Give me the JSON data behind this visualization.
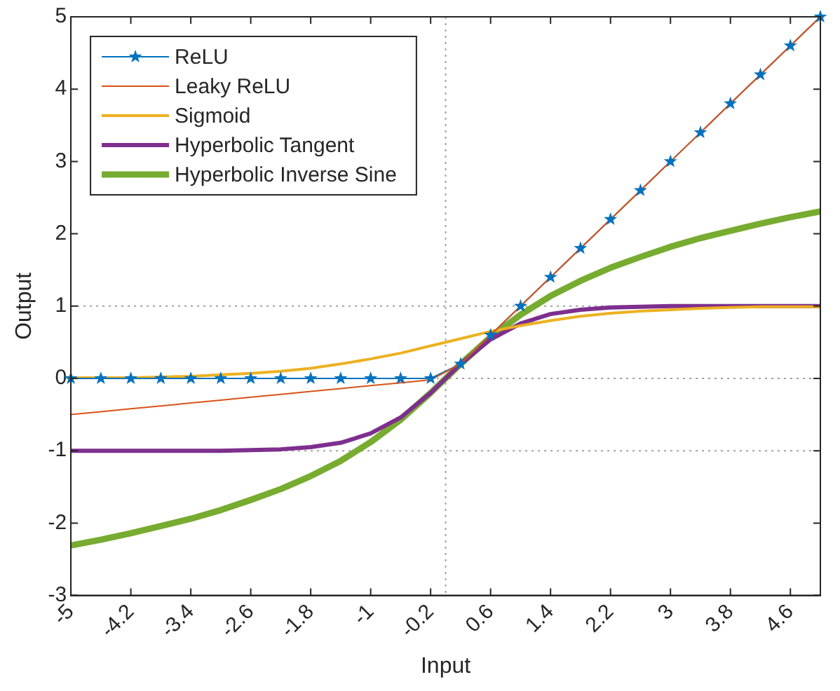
{
  "chart_data": {
    "type": "line",
    "xlabel": "Input",
    "ylabel": "Output",
    "x": [
      -5,
      -4.6,
      -4.2,
      -3.8,
      -3.4,
      -3,
      -2.6,
      -2.2,
      -1.8,
      -1.4,
      -1,
      -0.6,
      -0.2,
      0.2,
      0.6,
      1,
      1.4,
      1.8,
      2.2,
      2.6,
      3,
      3.4,
      3.8,
      4.2,
      4.6,
      5
    ],
    "xlim": [
      -5,
      5
    ],
    "xticks": [
      -5,
      -4.2,
      -3.4,
      -2.6,
      -1.8,
      -1,
      -0.2,
      0.6,
      1.4,
      2.2,
      3,
      3.8,
      4.6
    ],
    "ylim": [
      -3,
      5
    ],
    "yticks": [
      -3,
      -2,
      -1,
      0,
      1,
      2,
      3,
      4,
      5
    ],
    "grid": false,
    "legend": "top left",
    "line_style": "solid",
    "ref_lines": [
      {
        "axis": "y",
        "value": 1,
        "color": "#a0a0a0",
        "line_style": "dotted"
      },
      {
        "axis": "y",
        "value": 0,
        "color": "#a0a0a0",
        "line_style": "dotted"
      },
      {
        "axis": "y",
        "value": -1,
        "color": "#a0a0a0",
        "line_style": "dotted"
      },
      {
        "axis": "x",
        "value": 0,
        "color": "#a0a0a0",
        "line_style": "dotted"
      }
    ],
    "series": [
      {
        "name": "ReLU",
        "color": "#0072bd",
        "marker": "star",
        "values": [
          0,
          0,
          0,
          0,
          0,
          0,
          0,
          0,
          0,
          0,
          0,
          0,
          0,
          0.2,
          0.6,
          1,
          1.4,
          1.8,
          2.2,
          2.6,
          3,
          3.4,
          3.8,
          4.2,
          4.6,
          5
        ]
      },
      {
        "name": "Leaky ReLU",
        "color": "#d95319",
        "marker": "none",
        "values": [
          -0.5,
          -0.46,
          -0.42,
          -0.38,
          -0.34,
          -0.3,
          -0.26,
          -0.22,
          -0.18,
          -0.14,
          -0.1,
          -0.06,
          -0.02,
          0.2,
          0.6,
          1,
          1.4,
          1.8,
          2.2,
          2.6,
          3,
          3.4,
          3.8,
          4.2,
          4.6,
          5
        ]
      },
      {
        "name": "Sigmoid",
        "color": "#edb120",
        "marker": "none",
        "values": [
          0.01,
          0.01,
          0.01,
          0.02,
          0.03,
          0.05,
          0.07,
          0.1,
          0.14,
          0.2,
          0.27,
          0.35,
          0.45,
          0.55,
          0.65,
          0.73,
          0.8,
          0.86,
          0.9,
          0.93,
          0.95,
          0.97,
          0.98,
          0.99,
          0.99,
          0.99
        ]
      },
      {
        "name": "Hyperbolic Tangent",
        "color": "#7e2f8e",
        "marker": "none",
        "values": [
          -1,
          -1,
          -1,
          -1,
          -1,
          -1,
          -0.99,
          -0.98,
          -0.95,
          -0.89,
          -0.76,
          -0.54,
          -0.2,
          0.2,
          0.54,
          0.76,
          0.89,
          0.95,
          0.98,
          0.99,
          1,
          1,
          1,
          1,
          1,
          1
        ]
      },
      {
        "name": "Hyperbolic Inverse Sine",
        "color": "#77ac30",
        "marker": "none",
        "values": [
          -2.31,
          -2.23,
          -2.14,
          -2.04,
          -1.94,
          -1.82,
          -1.68,
          -1.53,
          -1.35,
          -1.14,
          -0.88,
          -0.57,
          -0.2,
          0.2,
          0.57,
          0.88,
          1.14,
          1.35,
          1.53,
          1.68,
          1.82,
          1.94,
          2.04,
          2.14,
          2.23,
          2.31
        ]
      }
    ]
  }
}
